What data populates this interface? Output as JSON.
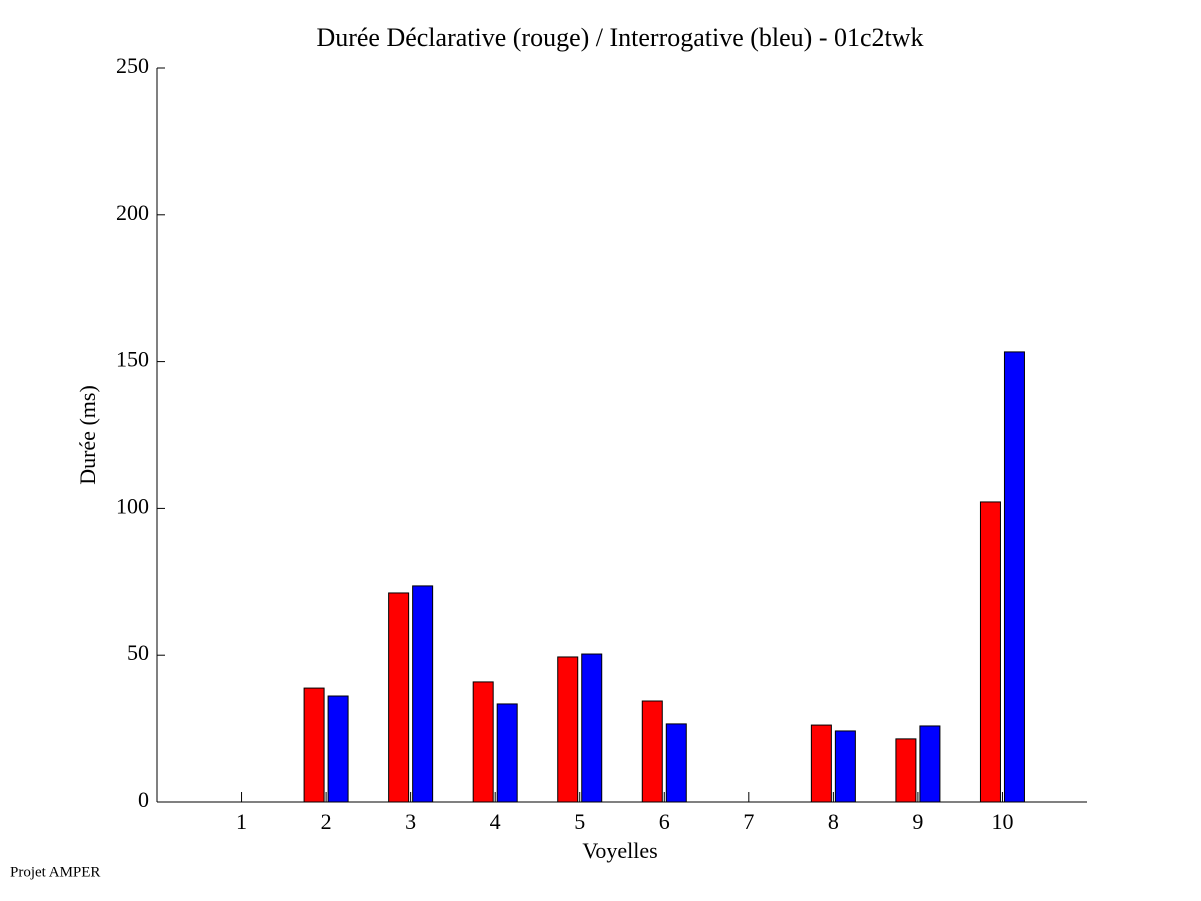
{
  "chart_data": {
    "type": "bar",
    "title": "Durée Déclarative (rouge) / Interrogative (bleu) - 01c2twk",
    "x_label": "Voyelles",
    "y_label": "Durée (ms)",
    "annotation": "Projet AMPER",
    "categories": [
      "1",
      "2",
      "3",
      "4",
      "5",
      "6",
      "7",
      "8",
      "9",
      "10"
    ],
    "series": [
      {
        "color": "#ff0000",
        "values": [
          0,
          38.8,
          71.2,
          40.9,
          49.4,
          34.4,
          0,
          26.2,
          21.5,
          102.2
        ]
      },
      {
        "color": "#0000ff",
        "values": [
          0,
          36.1,
          73.6,
          33.4,
          50.4,
          26.6,
          0,
          24.2,
          25.9,
          153.3
        ]
      }
    ],
    "ylim": [
      0,
      250
    ],
    "yticks": [
      0,
      50,
      100,
      150,
      200,
      250
    ],
    "grid": false
  }
}
